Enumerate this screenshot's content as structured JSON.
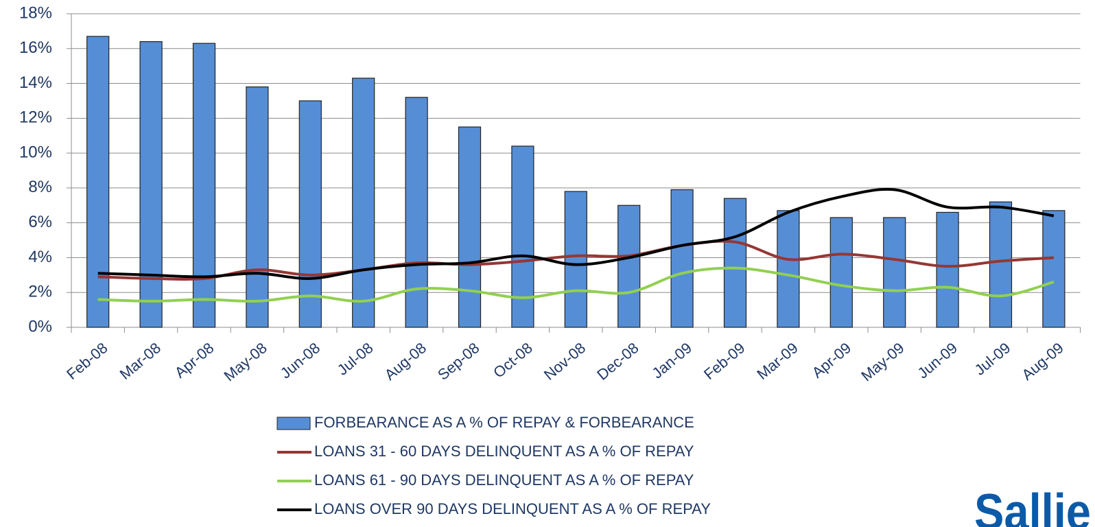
{
  "chart_data": {
    "type": "bar_line",
    "categories": [
      "Feb-08",
      "Mar-08",
      "Apr-08",
      "May-08",
      "Jun-08",
      "Jul-08",
      "Aug-08",
      "Sep-08",
      "Oct-08",
      "Nov-08",
      "Dec-08",
      "Jan-09",
      "Feb-09",
      "Mar-09",
      "Apr-09",
      "May-09",
      "Jun-09",
      "Jul-09",
      "Aug-09"
    ],
    "series": [
      {
        "name": "FORBEARANCE  AS A % OF REPAY & FORBEARANCE",
        "type": "bar",
        "color": "#558ed5",
        "values": [
          16.7,
          16.4,
          16.3,
          13.8,
          13.0,
          14.3,
          13.2,
          11.5,
          10.4,
          7.8,
          7.0,
          7.9,
          7.4,
          6.7,
          6.3,
          6.3,
          6.6,
          7.2,
          6.7
        ]
      },
      {
        "name": "LOANS 31 - 60 DAYS DELINQUENT  AS A % OF REPAY",
        "type": "line",
        "color": "#953735",
        "values": [
          2.9,
          2.8,
          2.8,
          3.3,
          3.0,
          3.3,
          3.7,
          3.6,
          3.8,
          4.1,
          4.1,
          4.7,
          4.9,
          3.9,
          4.2,
          3.9,
          3.5,
          3.8,
          4.0
        ]
      },
      {
        "name": "LOANS 61 - 90 DAYS DELINQUENT  AS A % OF REPAY",
        "type": "line",
        "color": "#92d050",
        "values": [
          1.6,
          1.5,
          1.6,
          1.5,
          1.8,
          1.5,
          2.2,
          2.1,
          1.7,
          2.1,
          2.0,
          3.1,
          3.4,
          3.0,
          2.4,
          2.1,
          2.3,
          1.8,
          2.6
        ]
      },
      {
        "name": "LOANS OVER 90 DAYS DELINQUENT  AS A % OF REPAY",
        "type": "line",
        "color": "#000000",
        "values": [
          3.1,
          3.0,
          2.9,
          3.1,
          2.8,
          3.3,
          3.6,
          3.7,
          4.1,
          3.6,
          4.0,
          4.7,
          5.2,
          6.6,
          7.5,
          7.9,
          6.9,
          6.9,
          6.4
        ]
      }
    ],
    "ylim": [
      0,
      18
    ],
    "yticks": [
      {
        "value": 0,
        "label": "0%"
      },
      {
        "value": 2,
        "label": "2%"
      },
      {
        "value": 4,
        "label": "4%"
      },
      {
        "value": 6,
        "label": "6%"
      },
      {
        "value": 8,
        "label": "8%"
      },
      {
        "value": 10,
        "label": "10%"
      },
      {
        "value": 12,
        "label": "12%"
      },
      {
        "value": 14,
        "label": "14%"
      },
      {
        "value": 16,
        "label": "16%"
      },
      {
        "value": 18,
        "label": "18%"
      }
    ],
    "grid": true,
    "smooth": true,
    "legend": "bottom",
    "logo": "Sallie"
  }
}
